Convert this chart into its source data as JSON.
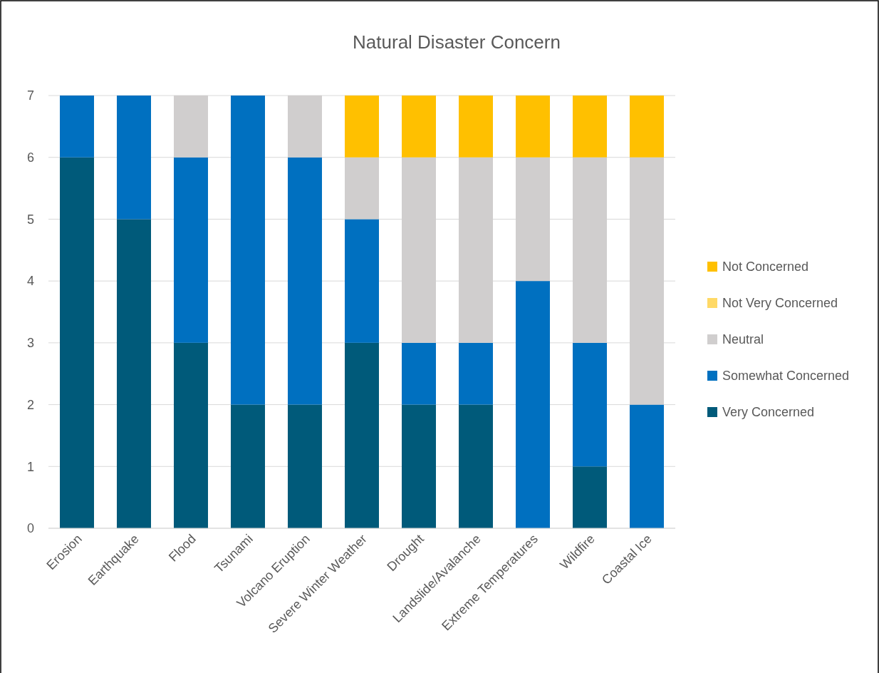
{
  "chart_data": {
    "type": "bar",
    "title": "Natural Disaster Concern",
    "stacked": true,
    "categories": [
      "Erosion",
      "Earthquake",
      "Flood",
      "Tsunami",
      "Volcano Eruption",
      "Severe Winter Weather",
      "Drought",
      "Landslide/Avalanche",
      "Extreme Temperatures",
      "Wildfire",
      "Coastal Ice"
    ],
    "series": [
      {
        "name": "Very Concerned",
        "color": "#005a7a",
        "values": [
          6,
          5,
          3,
          2,
          2,
          3,
          2,
          2,
          0,
          1,
          0
        ]
      },
      {
        "name": "Somewhat Concerned",
        "color": "#0070c0",
        "values": [
          1,
          2,
          3,
          5,
          4,
          2,
          1,
          1,
          4,
          2,
          2
        ]
      },
      {
        "name": "Neutral",
        "color": "#d0cece",
        "values": [
          0,
          0,
          1,
          0,
          1,
          1,
          3,
          3,
          2,
          3,
          4
        ]
      },
      {
        "name": "Not Very Concerned",
        "color": "#ffd966",
        "values": [
          0,
          0,
          0,
          0,
          0,
          0,
          0,
          0,
          0,
          0,
          0
        ]
      },
      {
        "name": "Not Concerned",
        "color": "#ffc000",
        "values": [
          0,
          0,
          0,
          0,
          0,
          1,
          1,
          1,
          1,
          1,
          1
        ]
      }
    ],
    "ylim": [
      0,
      7
    ],
    "yticks": [
      0,
      1,
      2,
      3,
      4,
      5,
      6,
      7
    ],
    "grid": "y",
    "legend": "right"
  }
}
